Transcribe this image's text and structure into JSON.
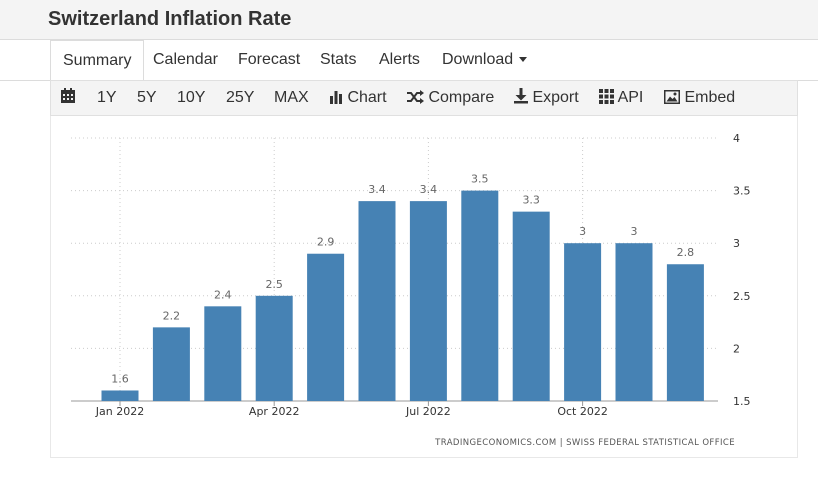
{
  "page": {
    "title": "Switzerland Inflation Rate"
  },
  "tabs": [
    "Summary",
    "Calendar",
    "Forecast",
    "Stats",
    "Alerts",
    "Download"
  ],
  "toolbar": {
    "ranges": [
      "1Y",
      "5Y",
      "10Y",
      "25Y",
      "MAX"
    ],
    "chart_label": "Chart",
    "compare_label": "Compare",
    "export_label": "Export",
    "api_label": "API",
    "embed_label": "Embed"
  },
  "colors": {
    "bar": "#4682b4",
    "grid": "#cccccc",
    "label": "#666666"
  },
  "chart_data": {
    "type": "bar",
    "title": "Switzerland Inflation Rate",
    "categories": [
      "2022-01",
      "2022-02",
      "2022-03",
      "2022-04",
      "2022-05",
      "2022-06",
      "2022-07",
      "2022-08",
      "2022-09",
      "2022-10",
      "2022-11",
      "2022-12"
    ],
    "values": [
      1.6,
      2.2,
      2.4,
      2.5,
      2.9,
      3.4,
      3.4,
      3.5,
      3.3,
      3,
      3,
      2.8
    ],
    "value_labels": [
      "1.6",
      "2.2",
      "2.4",
      "2.5",
      "2.9",
      "3.4",
      "3.4",
      "3.5",
      "3.3",
      "3",
      "3",
      "2.8"
    ],
    "x_ticks": [
      {
        "index": 0,
        "label": "Jan 2022"
      },
      {
        "index": 3,
        "label": "Apr 2022"
      },
      {
        "index": 6,
        "label": "Jul 2022"
      },
      {
        "index": 9,
        "label": "Oct 2022"
      }
    ],
    "y_ticks": [
      1.5,
      2,
      2.5,
      3,
      3.5,
      4
    ],
    "ylim": [
      1.5,
      4
    ],
    "xlabel": "",
    "ylabel": "",
    "grid": true,
    "source": "TRADINGECONOMICS.COM  |  SWISS FEDERAL STATISTICAL OFFICE"
  }
}
